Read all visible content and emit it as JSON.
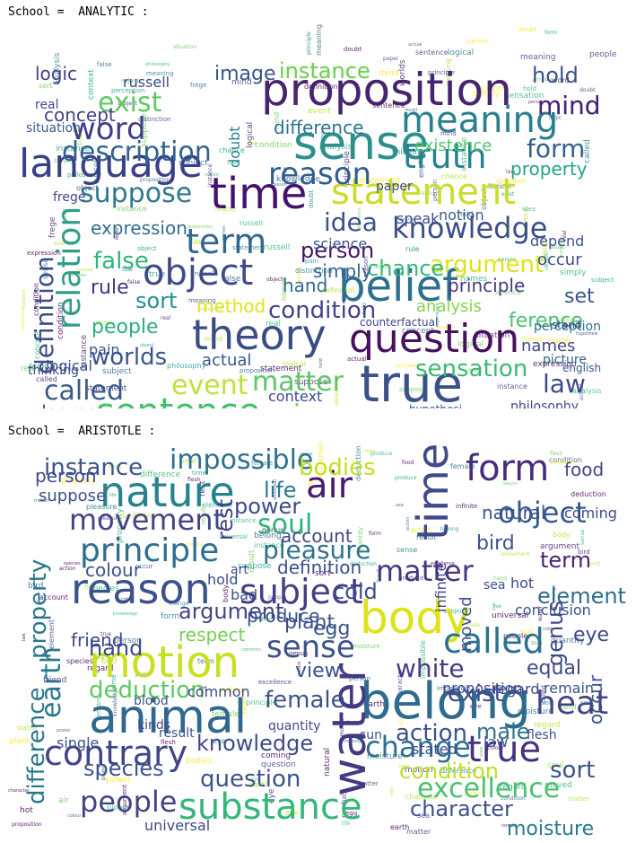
{
  "panels": [
    {
      "title": "School =  ANALYTIC :",
      "words": [
        {
          "text": "proposition",
          "color": "#46246e"
        },
        {
          "text": "sense",
          "color": "#2b8f8c"
        },
        {
          "text": "language",
          "color": "#3a3f86"
        },
        {
          "text": "time",
          "color": "#43126e"
        },
        {
          "text": "true",
          "color": "#3b5189"
        },
        {
          "text": "question",
          "color": "#47115f"
        },
        {
          "text": "theory",
          "color": "#3b4d86"
        },
        {
          "text": "belief",
          "color": "#2d6f8e"
        },
        {
          "text": "sentence",
          "color": "#43c06b"
        },
        {
          "text": "meaning",
          "color": "#2a7f8e"
        },
        {
          "text": "statement",
          "color": "#c9dd2a"
        },
        {
          "text": "object",
          "color": "#3f4a89"
        },
        {
          "text": "word",
          "color": "#3f3d8a"
        },
        {
          "text": "truth",
          "color": "#26818e"
        },
        {
          "text": "reason",
          "color": "#2f5f8d"
        },
        {
          "text": "term",
          "color": "#31668e"
        },
        {
          "text": "relation",
          "color": "#2f9e88"
        },
        {
          "text": "description",
          "color": "#32638d"
        },
        {
          "text": "knowledge",
          "color": "#3a4f8a"
        },
        {
          "text": "suppose",
          "color": "#2f788e"
        },
        {
          "text": "event",
          "color": "#bde338"
        },
        {
          "text": "matter",
          "color": "#5cc663"
        },
        {
          "text": "view",
          "color": "#7ad151"
        },
        {
          "text": "experience",
          "color": "#3d5388"
        },
        {
          "text": "condition",
          "color": "#414387"
        },
        {
          "text": "exist",
          "color": "#5ec962"
        },
        {
          "text": "mind",
          "color": "#482475"
        },
        {
          "text": "idea",
          "color": "#3b528b"
        },
        {
          "text": "argument",
          "color": "#dde318"
        },
        {
          "text": "sensation",
          "color": "#3bb972"
        },
        {
          "text": "definition",
          "color": "#3e4c8a"
        },
        {
          "text": "instance",
          "color": "#73d055"
        },
        {
          "text": "form",
          "color": "#35608d"
        },
        {
          "text": "worlds",
          "color": "#3a548c"
        },
        {
          "text": "difference",
          "color": "#2c728e"
        },
        {
          "text": "false",
          "color": "#2fb47c"
        },
        {
          "text": "called",
          "color": "#38598c"
        },
        {
          "text": "person",
          "color": "#471365"
        },
        {
          "text": "law",
          "color": "#3e4989"
        },
        {
          "text": "logic",
          "color": "#433e85"
        },
        {
          "text": "hold",
          "color": "#3b518b"
        },
        {
          "text": "property",
          "color": "#20a486"
        },
        {
          "text": "people",
          "color": "#29af7f"
        },
        {
          "text": "sort",
          "color": "#20938c"
        },
        {
          "text": "rule",
          "color": "#46327e"
        },
        {
          "text": "set",
          "color": "#39568c"
        },
        {
          "text": "image",
          "color": "#3a548c"
        },
        {
          "text": "expression",
          "color": "#2d708e"
        },
        {
          "text": "concept",
          "color": "#414487"
        },
        {
          "text": "principle",
          "color": "#443a83"
        },
        {
          "text": "chance",
          "color": "#35b779"
        },
        {
          "text": "method",
          "color": "#dde318"
        },
        {
          "text": "ference",
          "color": "#4ac16d"
        },
        {
          "text": "analysis",
          "color": "#86d549"
        },
        {
          "text": "actual",
          "color": "#39568c"
        },
        {
          "text": "names",
          "color": "#3e4a89"
        },
        {
          "text": "degree",
          "color": "#3c4f8a"
        },
        {
          "text": "answer",
          "color": "#404688"
        },
        {
          "text": "philosophy",
          "color": "#3e4989"
        },
        {
          "text": "simply",
          "color": "#32648e"
        },
        {
          "text": "hand",
          "color": "#31688e"
        },
        {
          "text": "occur",
          "color": "#3d4e8a"
        },
        {
          "text": "context",
          "color": "#3e4a89"
        },
        {
          "text": "existence",
          "color": "#4ec36b"
        },
        {
          "text": "science",
          "color": "#3b528b"
        },
        {
          "text": "instance",
          "color": "#73d055"
        },
        {
          "text": "doubt",
          "color": "#277f8e"
        },
        {
          "text": "logical",
          "color": "#3b528b"
        },
        {
          "text": "frege",
          "color": "#404588"
        },
        {
          "text": "russell",
          "color": "#3f4889"
        },
        {
          "text": "subject",
          "color": "#38598c"
        },
        {
          "text": "properties",
          "color": "#3e4989"
        },
        {
          "text": "distinction",
          "color": "#3b528b"
        },
        {
          "text": "picture",
          "color": "#31688e"
        },
        {
          "text": "perception",
          "color": "#2c728e"
        },
        {
          "text": "speak",
          "color": "#3f4889"
        },
        {
          "text": "notion",
          "color": "#38598c"
        },
        {
          "text": "depend",
          "color": "#3b528b"
        },
        {
          "text": "real",
          "color": "#3e4989"
        },
        {
          "text": "situation",
          "color": "#38598c"
        },
        {
          "text": "paper",
          "color": "#3e4a89"
        },
        {
          "text": "pain",
          "color": "#3b528b"
        },
        {
          "text": "hypothesi",
          "color": "#38598c"
        },
        {
          "text": "regard",
          "color": "#3e4989"
        },
        {
          "text": "thinking",
          "color": "#3e4989"
        },
        {
          "text": "counterfactual",
          "color": "#404688"
        },
        {
          "text": "stand",
          "color": "#3e4989"
        },
        {
          "text": "english",
          "color": "#38598c"
        },
        {
          "text": "mind",
          "color": "#482475"
        }
      ]
    },
    {
      "title": "School =  ARISTOTLE :",
      "words": [
        {
          "text": "animal",
          "color": "#31688e"
        },
        {
          "text": "belong",
          "color": "#2f6b8e"
        },
        {
          "text": "time",
          "color": "#3e4a89"
        },
        {
          "text": "nature",
          "color": "#26828e"
        },
        {
          "text": "body",
          "color": "#dde318"
        },
        {
          "text": "water",
          "color": "#443983"
        },
        {
          "text": "reason",
          "color": "#3b518b"
        },
        {
          "text": "motion",
          "color": "#c8e020"
        },
        {
          "text": "substance",
          "color": "#35b779"
        },
        {
          "text": "subject",
          "color": "#433e85"
        },
        {
          "text": "principle",
          "color": "#2e6f8e"
        },
        {
          "text": "form",
          "color": "#472c7a"
        },
        {
          "text": "air",
          "color": "#481b6d"
        },
        {
          "text": "contrary",
          "color": "#404588"
        },
        {
          "text": "called",
          "color": "#2c718e"
        },
        {
          "text": "impossible",
          "color": "#2d708e"
        },
        {
          "text": "sense",
          "color": "#3b528b"
        },
        {
          "text": "movement",
          "color": "#414487"
        },
        {
          "text": "earth",
          "color": "#2a788e"
        },
        {
          "text": "heat",
          "color": "#414487"
        },
        {
          "text": "true",
          "color": "#46327e"
        },
        {
          "text": "change",
          "color": "#2e6e8e"
        },
        {
          "text": "object",
          "color": "#38598c"
        },
        {
          "text": "difference",
          "color": "#2b758e"
        },
        {
          "text": "matter",
          "color": "#463480"
        },
        {
          "text": "people",
          "color": "#414487"
        },
        {
          "text": "excellence",
          "color": "#4ac16d"
        },
        {
          "text": "white",
          "color": "#433d84"
        },
        {
          "text": "pleasure",
          "color": "#2c728e"
        },
        {
          "text": "property",
          "color": "#2a788e"
        },
        {
          "text": "soul",
          "color": "#2db27d"
        },
        {
          "text": "exist",
          "color": "#3f4889"
        },
        {
          "text": "action",
          "color": "#3b528b"
        },
        {
          "text": "deduction",
          "color": "#5cc863"
        },
        {
          "text": "question",
          "color": "#3a548c"
        },
        {
          "text": "female",
          "color": "#3b528b"
        },
        {
          "text": "knowledge",
          "color": "#3e4989"
        },
        {
          "text": "species",
          "color": "#3b528b"
        },
        {
          "text": "element",
          "color": "#2f6c8e"
        },
        {
          "text": "condition",
          "color": "#bddf26"
        },
        {
          "text": "argument",
          "color": "#414487"
        },
        {
          "text": "character",
          "color": "#3b528b"
        },
        {
          "text": "moisture",
          "color": "#2a788e"
        },
        {
          "text": "instance",
          "color": "#3a548c"
        },
        {
          "text": "rest",
          "color": "#404688"
        },
        {
          "text": "life",
          "color": "#2a788e"
        },
        {
          "text": "power",
          "color": "#3e4a89"
        },
        {
          "text": "bodies",
          "color": "#c2df23"
        },
        {
          "text": "cold",
          "color": "#3d4e8a"
        },
        {
          "text": "hand",
          "color": "#3e4989"
        },
        {
          "text": "produce",
          "color": "#3b528b"
        },
        {
          "text": "egg",
          "color": "#3a548c"
        },
        {
          "text": "view",
          "color": "#3b528b"
        },
        {
          "text": "term",
          "color": "#482475"
        },
        {
          "text": "genus",
          "color": "#3e4989"
        },
        {
          "text": "bird",
          "color": "#3b528b"
        },
        {
          "text": "account",
          "color": "#3e4a89"
        },
        {
          "text": "colour",
          "color": "#3b528b"
        },
        {
          "text": "definition",
          "color": "#3d4e8a"
        },
        {
          "text": "sort",
          "color": "#3b528b"
        },
        {
          "text": "male",
          "color": "#2c728e"
        },
        {
          "text": "food",
          "color": "#3e4989"
        },
        {
          "text": "natural",
          "color": "#3b528b"
        },
        {
          "text": "respect",
          "color": "#73d055"
        },
        {
          "text": "friend",
          "color": "#3e4989"
        },
        {
          "text": "plant",
          "color": "#3b528b"
        },
        {
          "text": "infinite",
          "color": "#3e4989"
        },
        {
          "text": "moved",
          "color": "#3b528b"
        },
        {
          "text": "equal",
          "color": "#3e4989"
        },
        {
          "text": "eye",
          "color": "#404688"
        },
        {
          "text": "occur",
          "color": "#3b528b"
        },
        {
          "text": "person",
          "color": "#3e4989"
        },
        {
          "text": "suppose",
          "color": "#3b528b"
        },
        {
          "text": "proposition",
          "color": "#3e4989"
        },
        {
          "text": "remain",
          "color": "#3b528b"
        },
        {
          "text": "stated",
          "color": "#3e4989"
        },
        {
          "text": "law",
          "color": "#3b528b"
        },
        {
          "text": "universal",
          "color": "#3e4989"
        },
        {
          "text": "result",
          "color": "#3b528b"
        },
        {
          "text": "kinds",
          "color": "#3e4989"
        },
        {
          "text": "blood",
          "color": "#3b528b"
        },
        {
          "text": "common",
          "color": "#3e4989"
        },
        {
          "text": "sun",
          "color": "#3b528b"
        },
        {
          "text": "hot",
          "color": "#3e4989"
        },
        {
          "text": "sea",
          "color": "#3b528b"
        },
        {
          "text": "coming",
          "color": "#3e4989"
        },
        {
          "text": "conclusion",
          "color": "#3b528b"
        },
        {
          "text": "art",
          "color": "#3e4989"
        },
        {
          "text": "bad",
          "color": "#3b528b"
        },
        {
          "text": "hold",
          "color": "#3e4989"
        },
        {
          "text": "flesh",
          "color": "#3b528b"
        },
        {
          "text": "regard",
          "color": "#3e4989"
        },
        {
          "text": "single",
          "color": "#3b528b"
        },
        {
          "text": "quantity",
          "color": "#3e4989"
        }
      ]
    }
  ]
}
